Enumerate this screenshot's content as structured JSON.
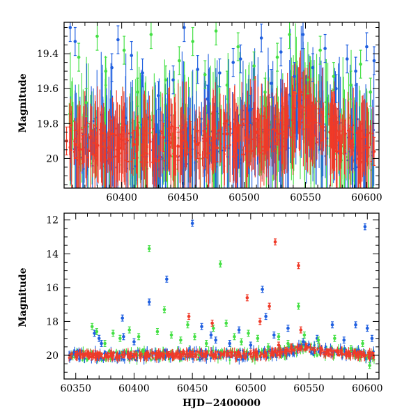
{
  "colors": {
    "blue": "#1f5fe0",
    "green": "#44e044",
    "red": "#f03a28"
  },
  "chart_data": [
    {
      "type": "scatter",
      "title": "",
      "xlabel": "",
      "ylabel": "Magnitude",
      "xlim": [
        60353,
        60610
      ],
      "ylim": [
        20.17,
        19.22
      ],
      "y_inverted": true,
      "xticks": [
        60400,
        60450,
        60500,
        60550,
        60600
      ],
      "xtick_labels": [
        "60400",
        "60450",
        "60500",
        "60550",
        "60600"
      ],
      "yticks": [
        19.4,
        19.6,
        19.8,
        20
      ],
      "ytick_labels": [
        "19.4",
        "19.6",
        "19.8",
        "20"
      ],
      "grid": false,
      "legend": "none",
      "baseline": [
        [
          60353,
          19.9
        ],
        [
          60420,
          19.92
        ],
        [
          60460,
          19.9
        ],
        [
          60500,
          19.88
        ],
        [
          60530,
          19.85
        ],
        [
          60545,
          19.7
        ],
        [
          60555,
          19.78
        ],
        [
          60570,
          19.85
        ],
        [
          60590,
          19.92
        ],
        [
          60610,
          19.95
        ]
      ],
      "series": [
        {
          "color_key": "blue",
          "values": [
            [
              60358,
              19.25
            ],
            [
              60362,
              19.33
            ],
            [
              60392,
              19.48
            ],
            [
              60397,
              19.32
            ],
            [
              60408,
              19.41
            ],
            [
              60417,
              19.51
            ],
            [
              60430,
              19.64
            ],
            [
              60442,
              19.55
            ],
            [
              60451,
              19.25
            ],
            [
              60462,
              19.49
            ],
            [
              60470,
              19.66
            ],
            [
              60480,
              19.51
            ],
            [
              60491,
              19.45
            ],
            [
              60497,
              19.43
            ],
            [
              60505,
              19.72
            ],
            [
              60514,
              19.31
            ],
            [
              60522,
              19.57
            ],
            [
              60530,
              19.39
            ],
            [
              60541,
              19.53
            ],
            [
              60548,
              19.29
            ],
            [
              60556,
              19.48
            ],
            [
              60566,
              19.37
            ],
            [
              60575,
              19.6
            ],
            [
              60584,
              19.43
            ],
            [
              60591,
              19.5
            ],
            [
              60600,
              19.36
            ],
            [
              60606,
              19.44
            ]
          ]
        },
        {
          "color_key": "green",
          "values": [
            [
              60365,
              19.42
            ],
            [
              60371,
              19.68
            ],
            [
              60380,
              19.3
            ],
            [
              60387,
              19.5
            ],
            [
              60402,
              19.38
            ],
            [
              60413,
              19.62
            ],
            [
              60424,
              19.29
            ],
            [
              60436,
              19.55
            ],
            [
              60447,
              19.44
            ],
            [
              60458,
              19.33
            ],
            [
              60468,
              19.52
            ],
            [
              60477,
              19.27
            ],
            [
              60486,
              19.58
            ],
            [
              60495,
              19.36
            ],
            [
              60508,
              19.47
            ],
            [
              60517,
              19.62
            ],
            [
              60527,
              19.42
            ],
            [
              60537,
              19.29
            ],
            [
              60552,
              19.55
            ],
            [
              60562,
              19.38
            ],
            [
              60573,
              19.53
            ],
            [
              60587,
              19.58
            ],
            [
              60595,
              19.46
            ],
            [
              60603,
              19.62
            ]
          ]
        },
        {
          "color_key": "red",
          "values": [
            [
              60355,
              19.9
            ],
            [
              60362,
              19.92
            ],
            [
              60368,
              19.95
            ],
            [
              60374,
              19.88
            ],
            [
              60380,
              19.93
            ],
            [
              60386,
              19.9
            ],
            [
              60392,
              19.86
            ],
            [
              60398,
              19.94
            ],
            [
              60404,
              19.89
            ],
            [
              60410,
              19.92
            ],
            [
              60418,
              19.9
            ],
            [
              60426,
              19.95
            ],
            [
              60434,
              19.88
            ],
            [
              60440,
              19.91
            ],
            [
              60446,
              19.93
            ],
            [
              60456,
              19.87
            ],
            [
              60462,
              19.92
            ],
            [
              60470,
              19.89
            ],
            [
              60478,
              19.94
            ],
            [
              60486,
              19.86
            ],
            [
              60494,
              19.9
            ],
            [
              60502,
              19.88
            ],
            [
              60510,
              19.85
            ],
            [
              60518,
              19.9
            ],
            [
              60526,
              19.84
            ],
            [
              60534,
              19.8
            ],
            [
              60540,
              19.7
            ],
            [
              60546,
              19.62
            ],
            [
              60552,
              19.72
            ],
            [
              60558,
              19.78
            ],
            [
              60564,
              19.82
            ],
            [
              60570,
              19.85
            ],
            [
              60576,
              19.88
            ],
            [
              60582,
              19.86
            ],
            [
              60588,
              19.9
            ],
            [
              60594,
              19.92
            ],
            [
              60600,
              19.94
            ],
            [
              60606,
              19.96
            ]
          ]
        }
      ]
    },
    {
      "type": "scatter",
      "title": "",
      "xlabel": "HJD−2400000",
      "ylabel": "Magnitude",
      "xlim": [
        60340,
        60610
      ],
      "ylim": [
        21.4,
        11.6
      ],
      "y_inverted": true,
      "xticks": [
        60350,
        60400,
        60450,
        60500,
        60550,
        60600
      ],
      "xtick_labels": [
        "60350",
        "60400",
        "60450",
        "60500",
        "60550",
        "60600"
      ],
      "yticks": [
        12,
        14,
        16,
        18,
        20
      ],
      "ytick_labels": [
        "12",
        "14",
        "16",
        "18",
        "20"
      ],
      "grid": false,
      "legend": "none",
      "baseline": [
        [
          60345,
          20.0
        ],
        [
          60400,
          20.0
        ],
        [
          60450,
          19.95
        ],
        [
          60500,
          20.0
        ],
        [
          60530,
          19.8
        ],
        [
          60545,
          19.55
        ],
        [
          60560,
          19.75
        ],
        [
          60580,
          19.9
        ],
        [
          60607,
          20.0
        ]
      ],
      "series": [
        {
          "color_key": "blue",
          "values": [
            [
              60366,
              18.7
            ],
            [
              60370,
              19.0
            ],
            [
              60372,
              19.3
            ],
            [
              60390,
              17.8
            ],
            [
              60391,
              18.9
            ],
            [
              60400,
              19.2
            ],
            [
              60413,
              16.85
            ],
            [
              60428,
              15.5
            ],
            [
              60450,
              12.2
            ],
            [
              60458,
              18.3
            ],
            [
              60466,
              18.8
            ],
            [
              60470,
              19.1
            ],
            [
              60482,
              19.3
            ],
            [
              60490,
              18.5
            ],
            [
              60500,
              19.4
            ],
            [
              60510,
              16.1
            ],
            [
              60513,
              17.7
            ],
            [
              60520,
              18.8
            ],
            [
              60532,
              18.4
            ],
            [
              60545,
              19.2
            ],
            [
              60557,
              19.0
            ],
            [
              60570,
              18.2
            ],
            [
              60580,
              19.1
            ],
            [
              60590,
              18.2
            ],
            [
              60598,
              12.4
            ],
            [
              60600,
              18.4
            ],
            [
              60604,
              19.0
            ]
          ]
        },
        {
          "color_key": "green",
          "values": [
            [
              60364,
              18.3
            ],
            [
              60368,
              18.6
            ],
            [
              60375,
              19.3
            ],
            [
              60382,
              18.7
            ],
            [
              60388,
              19.0
            ],
            [
              60396,
              18.5
            ],
            [
              60404,
              18.9
            ],
            [
              60408,
              19.8
            ],
            [
              60413,
              13.7
            ],
            [
              60420,
              18.6
            ],
            [
              60426,
              17.3
            ],
            [
              60432,
              18.8
            ],
            [
              60440,
              19.1
            ],
            [
              60446,
              18.2
            ],
            [
              60452,
              18.9
            ],
            [
              60462,
              19.3
            ],
            [
              60468,
              18.4
            ],
            [
              60474,
              14.6
            ],
            [
              60479,
              18.1
            ],
            [
              60486,
              18.9
            ],
            [
              60492,
              19.2
            ],
            [
              60498,
              18.7
            ],
            [
              60506,
              19.0
            ],
            [
              60515,
              19.5
            ],
            [
              60524,
              18.9
            ],
            [
              60532,
              19.3
            ],
            [
              60541,
              17.1
            ],
            [
              60546,
              18.8
            ],
            [
              60558,
              19.1
            ],
            [
              60572,
              19.0
            ],
            [
              60586,
              19.6
            ],
            [
              60596,
              19.3
            ],
            [
              60602,
              20.6
            ]
          ]
        },
        {
          "color_key": "red",
          "values": [
            [
              60350,
              19.95
            ],
            [
              60360,
              19.92
            ],
            [
              60370,
              19.98
            ],
            [
              60380,
              19.9
            ],
            [
              60390,
              19.97
            ],
            [
              60400,
              19.93
            ],
            [
              60410,
              19.99
            ],
            [
              60420,
              19.9
            ],
            [
              60430,
              19.96
            ],
            [
              60440,
              19.94
            ],
            [
              60447,
              17.7
            ],
            [
              60450,
              19.95
            ],
            [
              60460,
              19.92
            ],
            [
              60467,
              18.1
            ],
            [
              60470,
              19.97
            ],
            [
              60480,
              19.9
            ],
            [
              60490,
              19.95
            ],
            [
              60497,
              16.6
            ],
            [
              60500,
              19.92
            ],
            [
              60508,
              18.0
            ],
            [
              60516,
              17.1
            ],
            [
              60521,
              13.3
            ],
            [
              60524,
              19.4
            ],
            [
              60530,
              19.7
            ],
            [
              60535,
              19.5
            ],
            [
              60541,
              14.7
            ],
            [
              60543,
              18.5
            ],
            [
              60548,
              19.5
            ],
            [
              60555,
              19.7
            ],
            [
              60565,
              19.8
            ],
            [
              60575,
              19.85
            ],
            [
              60585,
              19.9
            ],
            [
              60595,
              19.95
            ],
            [
              60605,
              20.0
            ]
          ]
        }
      ]
    }
  ]
}
